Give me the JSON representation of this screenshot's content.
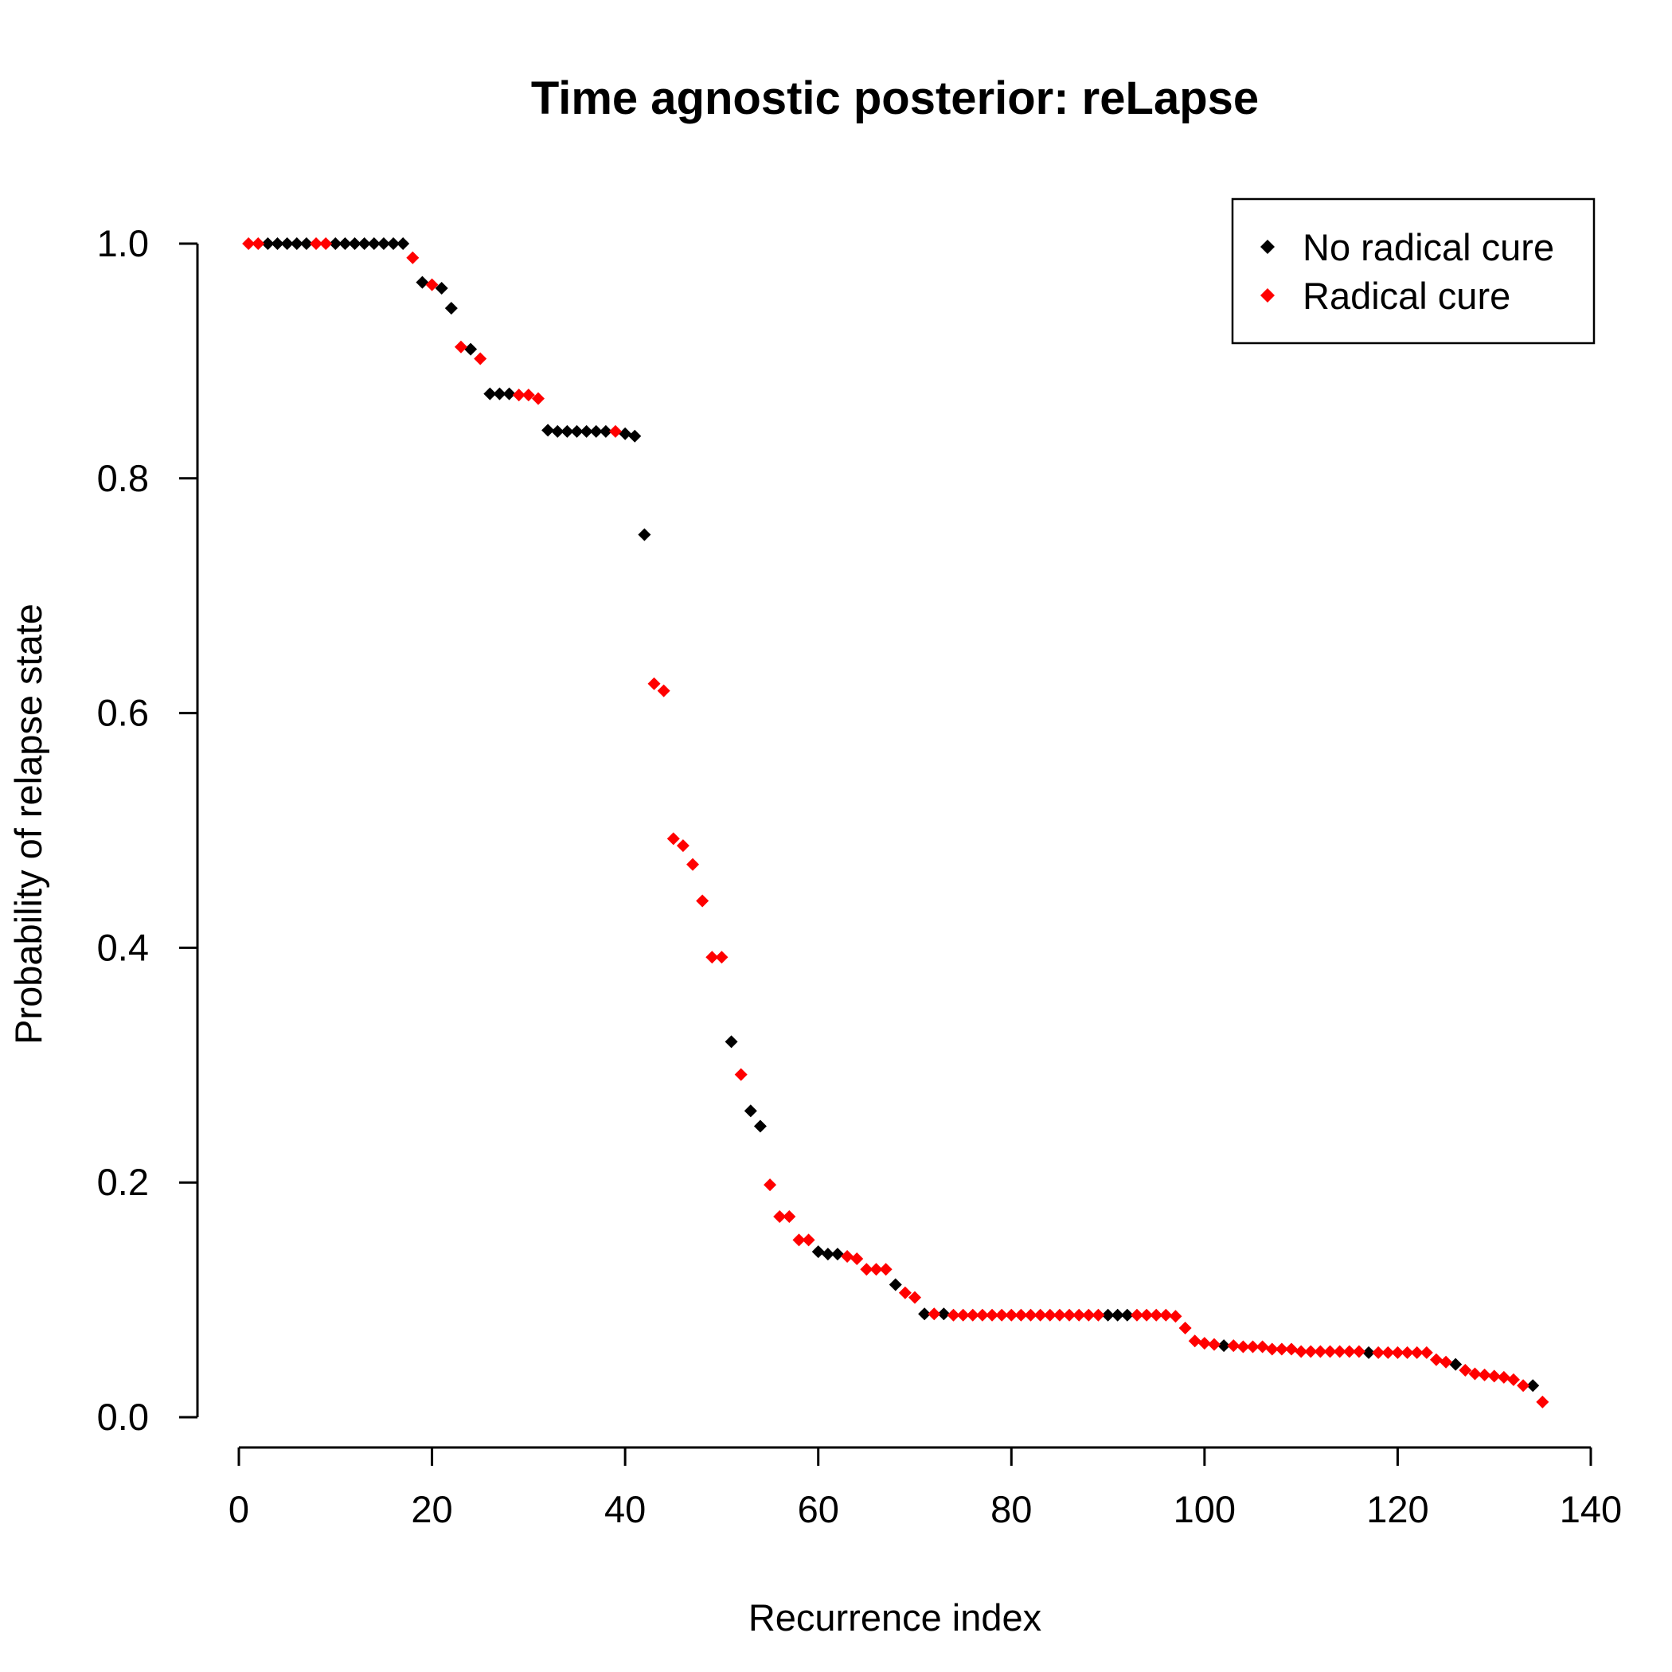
{
  "chart_data": {
    "type": "scatter",
    "title": "Time agnostic posterior: reLapse",
    "xlabel": "Recurrence index",
    "ylabel": "Probability of relapse state",
    "xlim": [
      0,
      140
    ],
    "ylim": [
      0,
      1
    ],
    "x_ticks": [
      "0",
      "20",
      "40",
      "60",
      "80",
      "100",
      "120",
      "140"
    ],
    "y_ticks": [
      "0.0",
      "0.2",
      "0.4",
      "0.6",
      "0.8",
      "1.0"
    ],
    "x_tick_values": [
      0,
      20,
      40,
      60,
      80,
      100,
      120,
      140
    ],
    "y_tick_values": [
      0,
      0.2,
      0.4,
      0.6,
      0.8,
      1.0
    ],
    "marker": "diamond",
    "grid": false,
    "legend_position": "top-right",
    "series": [
      {
        "name": "No radical cure",
        "color": "#000000",
        "x": [
          3,
          4,
          5,
          6,
          7,
          10,
          11,
          12,
          13,
          14,
          15,
          16,
          17,
          19,
          21,
          22,
          24,
          26,
          27,
          28,
          32,
          33,
          34,
          35,
          36,
          37,
          38,
          40,
          41,
          42,
          51,
          53,
          54,
          60,
          61,
          62,
          68,
          71,
          73,
          90,
          91,
          92,
          102,
          117,
          126,
          134
        ],
        "y": [
          1.0,
          1.0,
          1.0,
          1.0,
          1.0,
          1.0,
          1.0,
          1.0,
          1.0,
          1.0,
          1.0,
          1.0,
          1.0,
          0.967,
          0.962,
          0.945,
          0.91,
          0.872,
          0.872,
          0.872,
          0.841,
          0.84,
          0.84,
          0.84,
          0.84,
          0.84,
          0.84,
          0.838,
          0.836,
          0.752,
          0.32,
          0.261,
          0.248,
          0.141,
          0.139,
          0.139,
          0.113,
          0.088,
          0.088,
          0.087,
          0.087,
          0.087,
          0.061,
          0.055,
          0.045,
          0.027
        ]
      },
      {
        "name": "Radical cure",
        "color": "#ff0000",
        "x": [
          1,
          2,
          8,
          9,
          18,
          20,
          23,
          25,
          29,
          30,
          31,
          39,
          43,
          44,
          45,
          46,
          47,
          48,
          49,
          50,
          52,
          55,
          56,
          57,
          58,
          59,
          63,
          64,
          65,
          66,
          67,
          69,
          70,
          72,
          74,
          75,
          76,
          77,
          78,
          79,
          80,
          81,
          82,
          83,
          84,
          85,
          86,
          87,
          88,
          89,
          93,
          94,
          95,
          96,
          97,
          98,
          99,
          100,
          101,
          103,
          104,
          105,
          106,
          107,
          108,
          109,
          110,
          111,
          112,
          113,
          114,
          115,
          116,
          118,
          119,
          120,
          121,
          122,
          123,
          124,
          125,
          127,
          128,
          129,
          130,
          131,
          132,
          133,
          135
        ],
        "y": [
          1.0,
          1.0,
          1.0,
          1.0,
          0.988,
          0.965,
          0.912,
          0.902,
          0.871,
          0.871,
          0.868,
          0.84,
          0.625,
          0.619,
          0.493,
          0.487,
          0.471,
          0.44,
          0.392,
          0.392,
          0.292,
          0.198,
          0.171,
          0.171,
          0.151,
          0.151,
          0.137,
          0.135,
          0.126,
          0.126,
          0.126,
          0.106,
          0.102,
          0.088,
          0.087,
          0.087,
          0.087,
          0.087,
          0.087,
          0.087,
          0.087,
          0.087,
          0.087,
          0.087,
          0.087,
          0.087,
          0.087,
          0.087,
          0.087,
          0.087,
          0.087,
          0.087,
          0.087,
          0.087,
          0.086,
          0.076,
          0.065,
          0.063,
          0.062,
          0.061,
          0.06,
          0.06,
          0.06,
          0.058,
          0.058,
          0.058,
          0.056,
          0.056,
          0.056,
          0.056,
          0.056,
          0.056,
          0.056,
          0.055,
          0.055,
          0.055,
          0.055,
          0.055,
          0.055,
          0.049,
          0.047,
          0.04,
          0.037,
          0.036,
          0.035,
          0.034,
          0.032,
          0.027,
          0.013
        ]
      }
    ]
  }
}
